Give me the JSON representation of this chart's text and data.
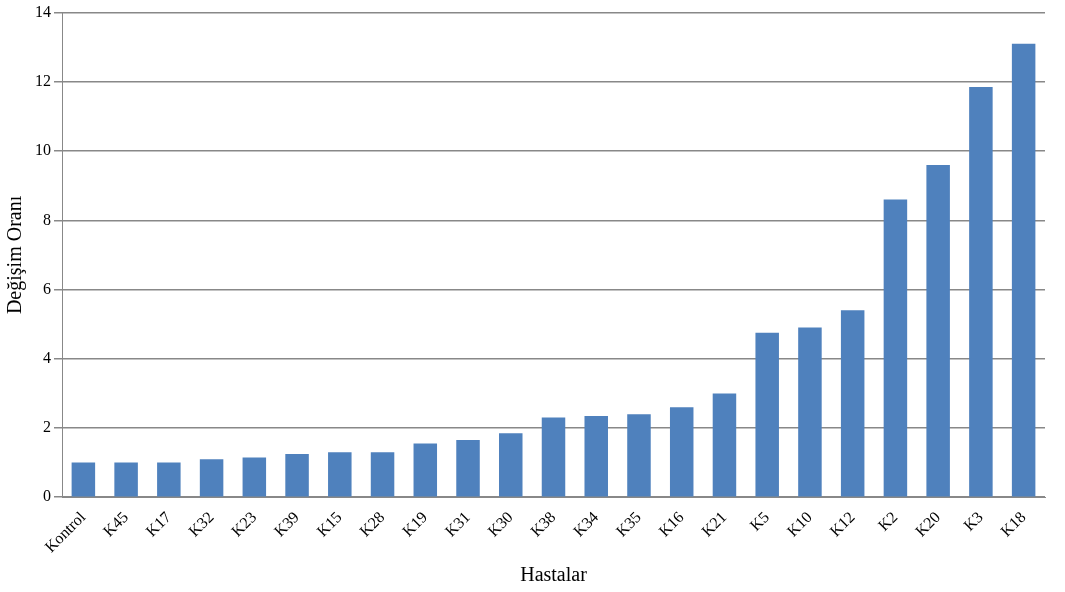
{
  "chart_data": {
    "type": "bar",
    "xlabel": "Hastalar",
    "ylabel": "Değişim Oranı",
    "categories": [
      "Kontrol",
      "K45",
      "K17",
      "K32",
      "K23",
      "K39",
      "K15",
      "K28",
      "K19",
      "K31",
      "K30",
      "K38",
      "K34",
      "K35",
      "K16",
      "K21",
      "K5",
      "K10",
      "K12",
      "K2",
      "K20",
      "K3",
      "K18"
    ],
    "values": [
      1.0,
      1.0,
      1.0,
      1.1,
      1.15,
      1.25,
      1.3,
      1.3,
      1.55,
      1.65,
      1.85,
      2.3,
      2.35,
      2.4,
      2.6,
      3.0,
      4.75,
      4.9,
      5.4,
      8.6,
      9.6,
      11.85,
      13.1
    ],
    "color": "#4f81bd",
    "ylim": [
      0,
      14
    ],
    "yticks": [
      0,
      2,
      4,
      6,
      8,
      10,
      12,
      14
    ],
    "grid": "y",
    "legend": false
  }
}
